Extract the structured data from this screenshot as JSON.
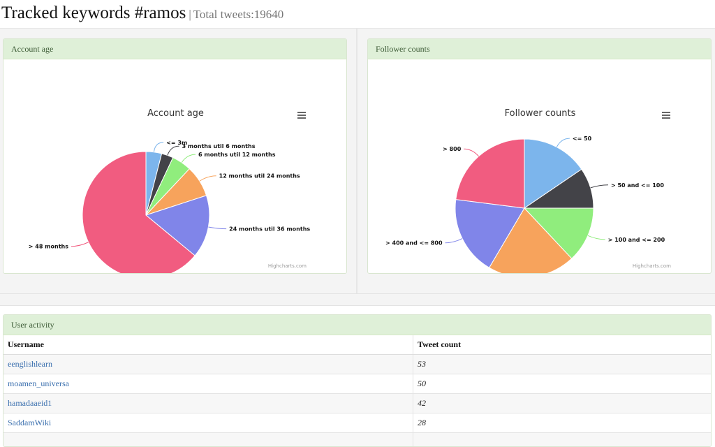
{
  "header": {
    "title": "Tracked keywords #ramos",
    "separator": "|",
    "subtitle": "Total tweets:19640"
  },
  "panels": {
    "account_age": {
      "heading": "Account age",
      "menu_icon": "hamburger-menu-icon",
      "credits": "Highcharts.com"
    },
    "follower_counts": {
      "heading": "Follower counts",
      "menu_icon": "hamburger-menu-icon",
      "credits": "Highcharts.com"
    }
  },
  "chart_data": [
    {
      "type": "pie",
      "title": "Account age",
      "labels": [
        "<= 3m",
        "3 months util 6 months",
        "6 months util 12 months",
        "12 months util 24 months",
        "24 months util 36 months",
        "> 48 months"
      ],
      "values": [
        4,
        3,
        5,
        8,
        16,
        64
      ],
      "colors": [
        "#7cb5ec",
        "#434348",
        "#90ed7d",
        "#f7a35c",
        "#8085e9",
        "#f15c80"
      ]
    },
    {
      "type": "pie",
      "title": "Follower counts",
      "labels": [
        "<= 50",
        "> 50 and <= 100",
        "> 100 and <= 200",
        "> 200 and <= 400",
        "> 400 and <= 800",
        "> 800"
      ],
      "values": [
        15.5,
        9.5,
        13,
        20.5,
        18.5,
        23
      ],
      "colors": [
        "#7cb5ec",
        "#434348",
        "#90ed7d",
        "#f7a35c",
        "#8085e9",
        "#f15c80"
      ]
    }
  ],
  "user_activity": {
    "heading": "User activity",
    "columns": [
      "Username",
      "Tweet count"
    ],
    "rows": [
      {
        "username": "eenglishlearn",
        "count": "53"
      },
      {
        "username": "moamen_universa",
        "count": "50"
      },
      {
        "username": "hamadaaeid1",
        "count": "42"
      },
      {
        "username": "SaddamWiki",
        "count": "28"
      }
    ]
  }
}
